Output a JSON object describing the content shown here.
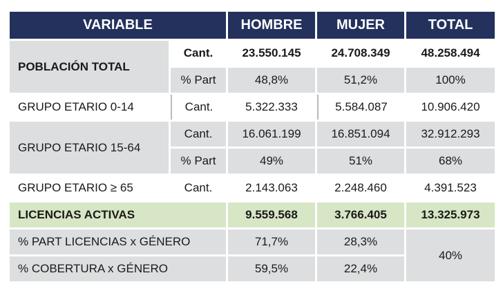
{
  "header": {
    "variable": "VARIABLE",
    "hombre": "HOMBRE",
    "mujer": "MUJER",
    "total": "TOTAL"
  },
  "poblacion_total": {
    "label": "POBLACIÓN TOTAL",
    "cant": {
      "measure": "Cant.",
      "hombre": "23.550.145",
      "mujer": "24.708.349",
      "total": "48.258.494"
    },
    "part": {
      "measure": "% Part",
      "hombre": "48,8%",
      "mujer": "51,2%",
      "total": "100%"
    }
  },
  "grupo_0_14": {
    "label": "GRUPO ETARIO 0-14",
    "cant": {
      "measure": "Cant.",
      "hombre": "5.322.333",
      "mujer": "5.584.087",
      "total": "10.906.420"
    }
  },
  "grupo_15_64": {
    "label": "GRUPO ETARIO 15-64",
    "cant": {
      "measure": "Cant.",
      "hombre": "16.061.199",
      "mujer": "16.851.094",
      "total": "32.912.293"
    },
    "part": {
      "measure": "% Part",
      "hombre": "49%",
      "mujer": "51%",
      "total": "68%"
    }
  },
  "grupo_65": {
    "label": "GRUPO ETARIO ≥ 65",
    "cant": {
      "measure": "Cant.",
      "hombre": "2.143.063",
      "mujer": "2.248.460",
      "total": "4.391.523"
    }
  },
  "licencias": {
    "label": "LICENCIAS ACTIVAS",
    "hombre": "9.559.568",
    "mujer": "3.766.405",
    "total": "13.325.973"
  },
  "part_licencias": {
    "label": "% PART LICENCIAS x GÉNERO",
    "hombre": "71,7%",
    "mujer": "28,3%"
  },
  "cobertura": {
    "label": "% COBERTURA x GÉNERO",
    "hombre": "59,5%",
    "mujer": "22,4%",
    "total": "40%"
  },
  "colors": {
    "header_bg": "#23315c",
    "gray_band": "#dcdedf",
    "green_band": "#d7e6c5"
  }
}
